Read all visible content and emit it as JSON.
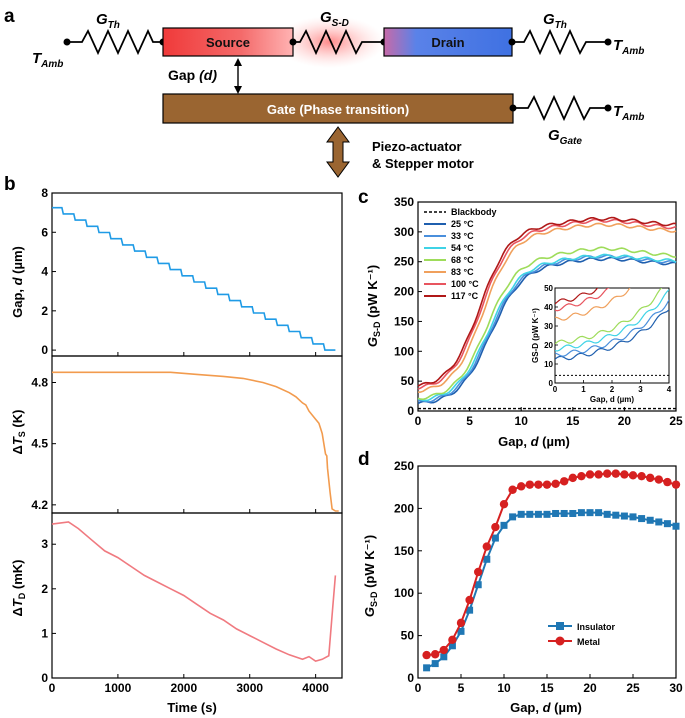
{
  "panel_labels": {
    "a": "a",
    "b": "b",
    "c": "c",
    "d": "d"
  },
  "schematic": {
    "source": "Source",
    "drain": "Drain",
    "gate": "Gate (Phase transition)",
    "gap": "Gap (d)",
    "actuator_line1": "Piezo-actuator",
    "actuator_line2": "& Stepper motor",
    "g_th_left": "GTh",
    "g_sd": "GS-D",
    "g_th_right": "GTh",
    "g_gate": "GGate",
    "t_amb": "TAmb",
    "colors": {
      "source": "#f03838",
      "drain": "#3f71e2",
      "gate": "#9a6531",
      "glow": "#ff8f8f"
    }
  },
  "chart_data": [
    {
      "id": "b-top",
      "type": "line",
      "ylabel": "Gap, d (µm)",
      "xlim": [
        0,
        4400
      ],
      "ylim": [
        -0.3,
        8
      ],
      "yticks": [
        0,
        2,
        4,
        6,
        8
      ],
      "color": "#1f9be6",
      "series": [
        {
          "name": "gap",
          "x_start": 150,
          "x_end": 4300,
          "y_start": 7.25,
          "y_end": 0.0,
          "steps": 23
        }
      ]
    },
    {
      "id": "b-mid",
      "type": "line",
      "ylabel": "ΔTS (K)",
      "xlim": [
        0,
        4400
      ],
      "ylim": [
        4.16,
        4.93
      ],
      "yticks": [
        4.2,
        4.5,
        4.8
      ],
      "color": "#f29b4e",
      "series": [
        {
          "name": "dTs",
          "x": [
            0,
            400,
            1200,
            1800,
            2200,
            2600,
            2900,
            3200,
            3400,
            3600,
            3700,
            3800,
            3850,
            3900,
            4000,
            4050,
            4080,
            4100,
            4150,
            4170,
            4180,
            4220,
            4250,
            4300,
            4350
          ],
          "y": [
            4.85,
            4.85,
            4.85,
            4.85,
            4.84,
            4.83,
            4.82,
            4.8,
            4.78,
            4.75,
            4.73,
            4.7,
            4.69,
            4.66,
            4.62,
            4.6,
            4.57,
            4.55,
            4.45,
            4.44,
            4.38,
            4.26,
            4.18,
            4.17,
            4.17
          ]
        }
      ]
    },
    {
      "id": "b-bot",
      "type": "line",
      "ylabel": "ΔTD (mK)",
      "xlabel": "Time (s)",
      "xlim": [
        0,
        4400
      ],
      "ylim": [
        0,
        3.7
      ],
      "xticks": [
        0,
        1000,
        2000,
        3000,
        4000
      ],
      "yticks": [
        0,
        1,
        2,
        3
      ],
      "color": "#f07a80",
      "series": [
        {
          "name": "dTd",
          "x": [
            0,
            250,
            400,
            600,
            800,
            1000,
            1200,
            1400,
            1600,
            1800,
            2000,
            2200,
            2400,
            2600,
            2800,
            3000,
            3200,
            3400,
            3600,
            3800,
            3900,
            4000,
            4100,
            4200,
            4260,
            4300
          ],
          "y": [
            3.45,
            3.5,
            3.35,
            3.1,
            2.85,
            2.7,
            2.5,
            2.3,
            2.15,
            2.0,
            1.85,
            1.65,
            1.45,
            1.3,
            1.1,
            0.95,
            0.8,
            0.65,
            0.52,
            0.42,
            0.48,
            0.38,
            0.42,
            0.5,
            1.6,
            2.3
          ]
        }
      ]
    },
    {
      "id": "c",
      "type": "line",
      "ylabel": "GS-D (pW K⁻¹)",
      "xlabel": "Gap, d (µm)",
      "xlim": [
        0,
        25
      ],
      "ylim": [
        0,
        350
      ],
      "xticks": [
        0,
        5,
        10,
        15,
        20,
        25
      ],
      "yticks": [
        0,
        50,
        100,
        150,
        200,
        250,
        300,
        350
      ],
      "legend": [
        "Blackbody",
        "25 °C",
        "33 °C",
        "54 °C",
        "68 °C",
        "83 °C",
        "100 °C",
        "117 °C"
      ],
      "blackbody": 4,
      "series": [
        {
          "name": "25 °C",
          "color": "#1f5fae",
          "g0": 10,
          "gmax": 245,
          "mid": 7.0,
          "w": 1.55,
          "bump": 10
        },
        {
          "name": "33 °C",
          "color": "#4a8fdc",
          "g0": 12,
          "gmax": 247,
          "mid": 6.9,
          "w": 1.55,
          "bump": 12
        },
        {
          "name": "54 °C",
          "color": "#3fd3e6",
          "g0": 15,
          "gmax": 250,
          "mid": 6.8,
          "w": 1.55,
          "bump": 10
        },
        {
          "name": "68 °C",
          "color": "#9edc5a",
          "g0": 18,
          "gmax": 258,
          "mid": 6.6,
          "w": 1.5,
          "bump": 14
        },
        {
          "name": "83 °C",
          "color": "#f0a05c",
          "g0": 30,
          "gmax": 300,
          "mid": 6.3,
          "w": 1.45,
          "bump": 12
        },
        {
          "name": "100 °C",
          "color": "#e8555f",
          "g0": 35,
          "gmax": 305,
          "mid": 6.1,
          "w": 1.45,
          "bump": 14
        },
        {
          "name": "117 °C",
          "color": "#b01818",
          "g0": 38,
          "gmax": 310,
          "mid": 6.0,
          "w": 1.45,
          "bump": 12
        }
      ],
      "inset": {
        "xlabel": "Gap, d (µm)",
        "ylabel": "GS-D (pW K⁻¹)",
        "xlim": [
          0,
          4
        ],
        "ylim": [
          0,
          50
        ],
        "xticks": [
          0,
          1,
          2,
          3,
          4
        ],
        "yticks": [
          0,
          10,
          20,
          30,
          40,
          50
        ]
      }
    },
    {
      "id": "d",
      "type": "line",
      "ylabel": "GS-D (pW K⁻¹)",
      "xlabel": "Gap, d (µm)",
      "xlim": [
        0,
        30
      ],
      "ylim": [
        0,
        250
      ],
      "xticks": [
        0,
        5,
        10,
        15,
        20,
        25,
        30
      ],
      "yticks": [
        0,
        50,
        100,
        150,
        200,
        250
      ],
      "series": [
        {
          "name": "Insulator",
          "marker": "square",
          "color": "#1f77b4",
          "x": [
            1,
            2,
            3,
            4,
            5,
            6,
            7,
            8,
            9,
            10,
            11,
            12,
            13,
            14,
            15,
            16,
            17,
            18,
            19,
            20,
            21,
            22,
            23,
            24,
            25,
            26,
            27,
            28,
            29,
            30
          ],
          "y": [
            12,
            17,
            25,
            38,
            55,
            80,
            110,
            140,
            165,
            180,
            190,
            193,
            193,
            193,
            193,
            194,
            194,
            194,
            195,
            195,
            195,
            193,
            192,
            191,
            190,
            188,
            186,
            184,
            182,
            179
          ]
        },
        {
          "name": "Metal",
          "marker": "circle",
          "color": "#d62020",
          "x": [
            1,
            2,
            3,
            4,
            5,
            6,
            7,
            8,
            9,
            10,
            11,
            12,
            13,
            14,
            15,
            16,
            17,
            18,
            19,
            20,
            21,
            22,
            23,
            24,
            25,
            26,
            27,
            28,
            29,
            30
          ],
          "y": [
            27,
            28,
            33,
            45,
            65,
            92,
            125,
            155,
            178,
            205,
            222,
            226,
            228,
            228,
            228,
            229,
            232,
            236,
            238,
            240,
            240,
            241,
            241,
            240,
            239,
            238,
            236,
            234,
            231,
            228
          ]
        }
      ]
    }
  ]
}
